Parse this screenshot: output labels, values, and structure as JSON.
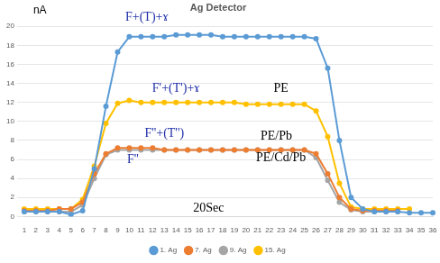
{
  "chart_data": {
    "type": "line",
    "title": "Ag Detector",
    "y_label": "nA",
    "categories": [
      "1",
      "2",
      "3",
      "4",
      "5",
      "6",
      "7",
      "8",
      "9",
      "10",
      "11",
      "12",
      "13",
      "14",
      "15",
      "16",
      "17",
      "18",
      "19",
      "20",
      "21",
      "22",
      "23",
      "24",
      "25",
      "26",
      "27",
      "28",
      "29",
      "30",
      "31",
      "32",
      "33",
      "34",
      "35",
      "36"
    ],
    "series": [
      {
        "name": "1. Ag",
        "color": "#5b9bd5",
        "marker": "circle",
        "values": [
          0.5,
          0.5,
          0.5,
          0.5,
          0.2,
          0.6,
          5,
          11.6,
          17.3,
          18.9,
          18.9,
          18.9,
          18.9,
          19.1,
          19.1,
          19.1,
          19.1,
          18.9,
          18.9,
          18.9,
          18.9,
          18.9,
          18.9,
          18.9,
          18.9,
          18.7,
          15.6,
          8,
          2,
          0.8,
          0.5,
          0.5,
          0.5,
          0.4,
          0.4,
          0.4
        ]
      },
      {
        "name": "7. Ag",
        "color": "#ed7d31",
        "marker": "circle",
        "values": [
          0.6,
          0.6,
          0.6,
          0.8,
          0.8,
          1.5,
          4.5,
          6.6,
          7.2,
          7.2,
          7.2,
          7.2,
          7,
          7,
          7,
          7,
          7,
          7,
          7,
          7,
          7,
          7,
          7,
          7,
          7,
          6.6,
          4.5,
          2,
          0.8,
          0.6,
          0.6,
          0.6,
          0.6,
          null,
          null,
          null
        ]
      },
      {
        "name": "9. Ag",
        "color": "#a5a5a5",
        "marker": "circle",
        "values": [
          0.5,
          0.5,
          0.5,
          0.5,
          0.5,
          1.2,
          4,
          6.5,
          7,
          7,
          7,
          7,
          7,
          7,
          7,
          7,
          7,
          7,
          7,
          7,
          7,
          7,
          7,
          7,
          7,
          6.2,
          3.8,
          1.5,
          0.7,
          0.5,
          0.5,
          0.5,
          0.5,
          null,
          null,
          null
        ]
      },
      {
        "name": "15. Ag",
        "color": "#ffc000",
        "marker": "circle",
        "values": [
          0.8,
          0.8,
          0.8,
          0.8,
          0.8,
          1.8,
          5.3,
          9.8,
          11.9,
          12.2,
          12,
          12,
          12,
          12,
          12,
          12,
          12,
          12,
          12,
          11.8,
          11.8,
          11.8,
          11.8,
          11.8,
          11.8,
          11.1,
          8.4,
          3.5,
          1,
          0.8,
          0.8,
          0.8,
          0.8,
          0.8,
          null,
          null
        ]
      }
    ],
    "annotations": [
      "F+(T)+ɤ",
      "F'+(T')+ɤ",
      "PE",
      "PE/Pb",
      "F''+(T'')",
      "F''",
      "PE/Cd/Pb",
      "20Sec"
    ],
    "ylim": [
      0,
      20
    ],
    "yticks": [
      0,
      2,
      4,
      6,
      8,
      10,
      12,
      14,
      16,
      18,
      20
    ],
    "grid": true,
    "legend": "bottom"
  }
}
